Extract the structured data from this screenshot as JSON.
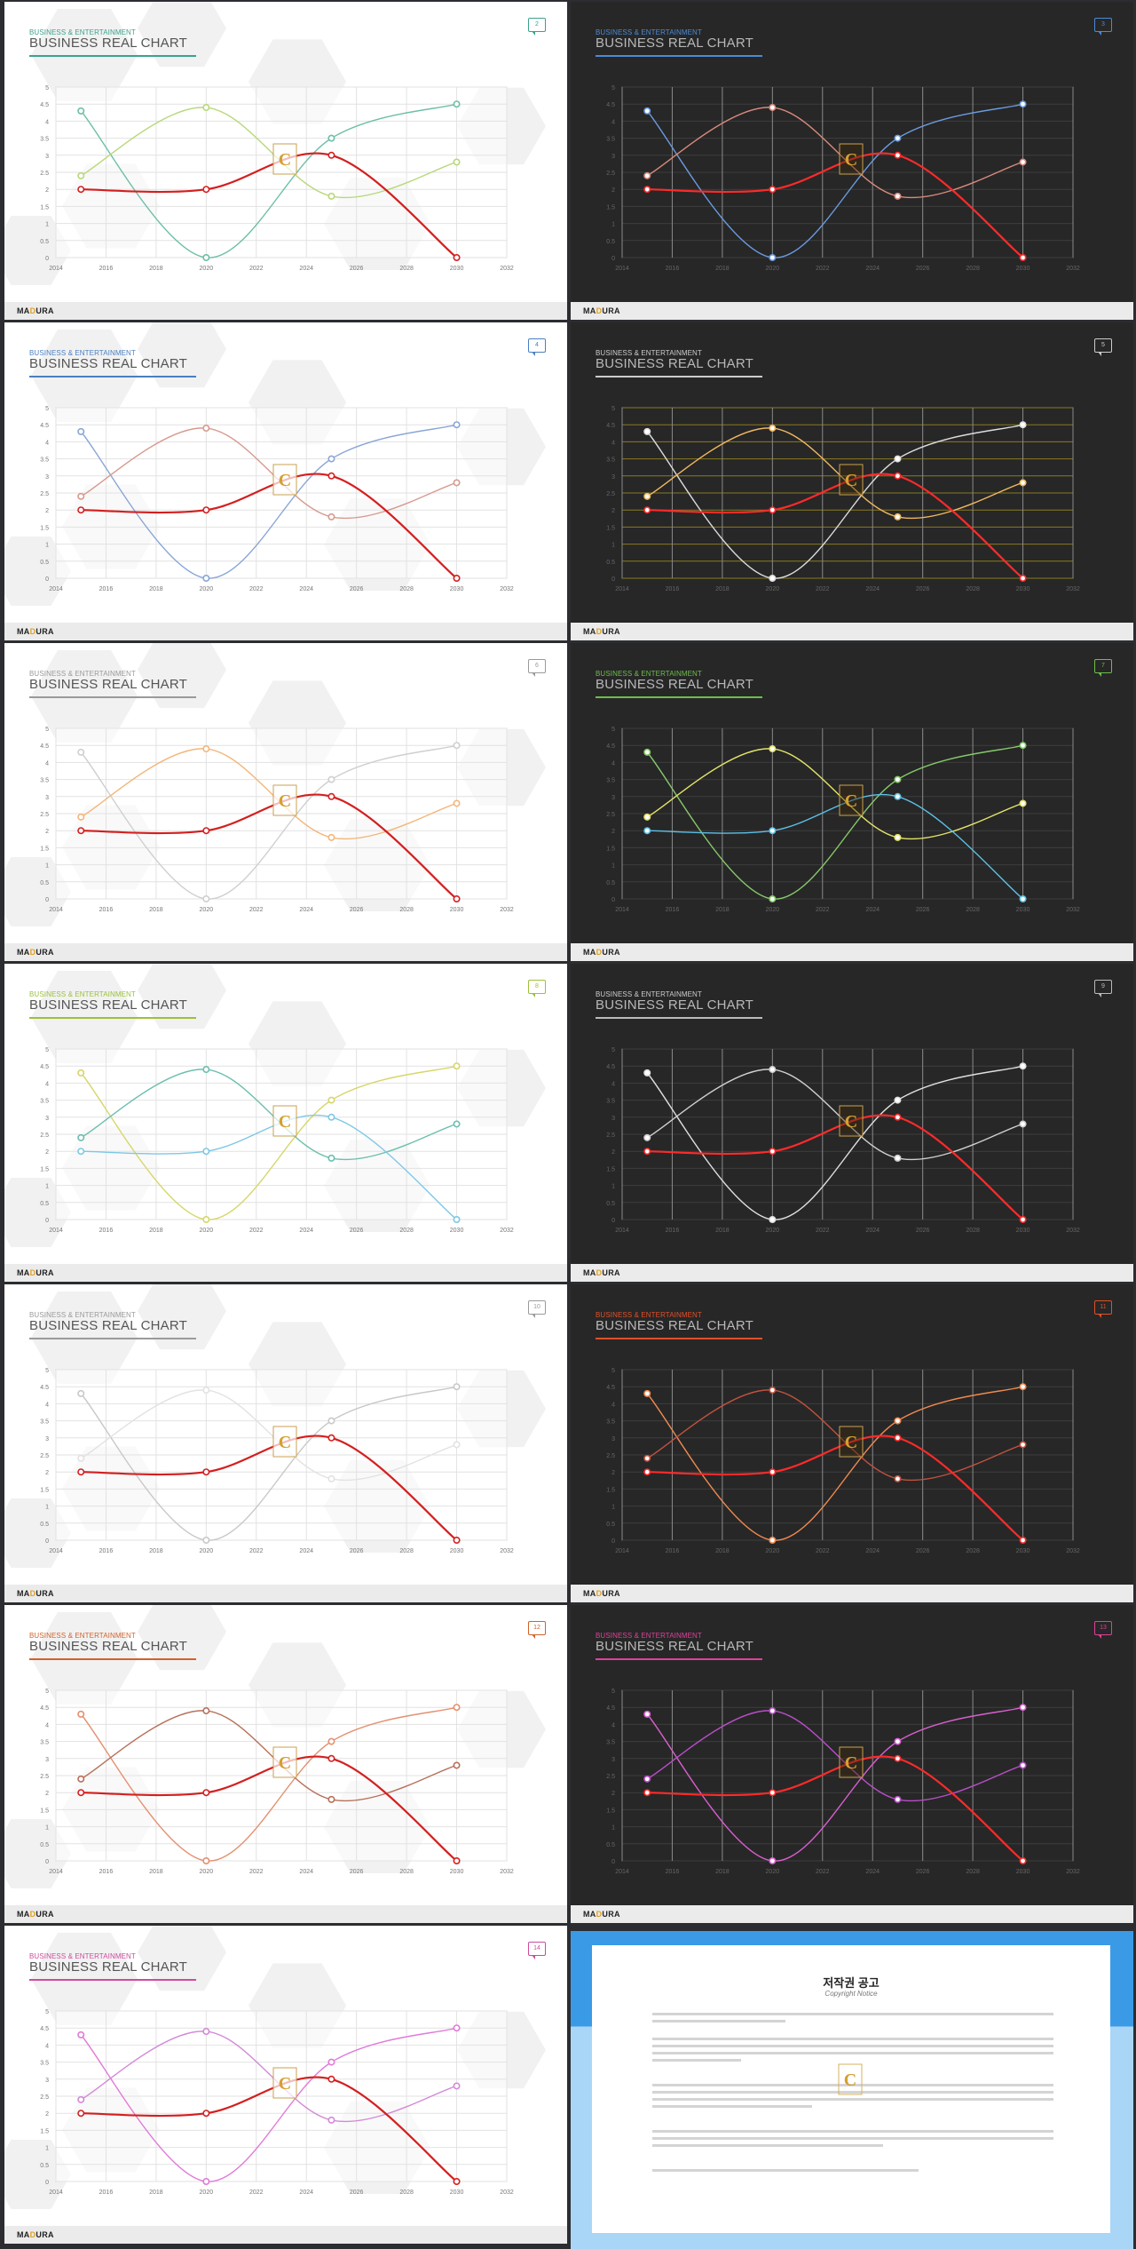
{
  "header": {
    "small": "BUSINESS & ENTERTAINMENT",
    "title": "BUSINESS REAL CHART"
  },
  "footer": {
    "logo_ma": "MA",
    "logo_d": "D",
    "logo_ura": "URA"
  },
  "chart_data": {
    "type": "line",
    "x": [
      2015,
      2020,
      2025,
      2030
    ],
    "series": [
      {
        "values": [
          4.3,
          0,
          3.5,
          4.5
        ]
      },
      {
        "values": [
          2.4,
          4.4,
          1.8,
          2.8
        ]
      },
      {
        "values": [
          2,
          2,
          3,
          0
        ]
      }
    ],
    "xlim": [
      2014,
      2032
    ],
    "ylim": [
      0,
      5
    ],
    "xticks": [
      "2014",
      "2016",
      "2018",
      "2020",
      "2022",
      "2024",
      "2026",
      "2028",
      "2030",
      "2032"
    ],
    "yticks": [
      "0",
      "0.5",
      "1",
      "1.5",
      "2",
      "2.5",
      "3",
      "3.5",
      "4",
      "4.5",
      "5"
    ],
    "legend": "none"
  },
  "slides": [
    {
      "page": "2",
      "theme": "light",
      "accent": "#3aa38c",
      "colors": [
        "#6cbfa8",
        "#b8d87a",
        "#d41f1f"
      ]
    },
    {
      "page": "3",
      "theme": "dark",
      "accent": "#4a8bd6",
      "colors": [
        "#6a9be0",
        "#d98a7c",
        "#ff2a2a"
      ]
    },
    {
      "page": "4",
      "theme": "light",
      "accent": "#4a7fc1",
      "colors": [
        "#8aa6d6",
        "#d79a8e",
        "#d41f1f"
      ]
    },
    {
      "page": "5",
      "theme": "dark",
      "accent": "#cccccc",
      "colors": [
        "#dddddd",
        "#f0b860",
        "#ff2a2a"
      ]
    },
    {
      "page": "6",
      "theme": "light",
      "accent": "#9a9a9a",
      "colors": [
        "#cfcfcf",
        "#f3b67a",
        "#d41f1f"
      ]
    },
    {
      "page": "7",
      "theme": "dark",
      "accent": "#6bbf4a",
      "colors": [
        "#86c96a",
        "#e3e36b",
        "#5cc1e8"
      ]
    },
    {
      "page": "8",
      "theme": "light",
      "accent": "#9bc13a",
      "colors": [
        "#d6d66a",
        "#6cbfae",
        "#7ec7e6"
      ]
    },
    {
      "page": "9",
      "theme": "dark",
      "accent": "#bbbbbb",
      "colors": [
        "#e0e0e0",
        "#cfcfcf",
        "#ff2a2a"
      ]
    },
    {
      "page": "10",
      "theme": "light",
      "accent": "#9a9a9a",
      "colors": [
        "#c8c8c8",
        "#e2e2e2",
        "#d41f1f"
      ]
    },
    {
      "page": "11",
      "theme": "dark",
      "accent": "#e0502a",
      "colors": [
        "#f08a50",
        "#c0523f",
        "#ff2a2a"
      ]
    },
    {
      "page": "12",
      "theme": "light",
      "accent": "#d2622a",
      "colors": [
        "#e39070",
        "#b8705a",
        "#d41f1f"
      ]
    },
    {
      "page": "13",
      "theme": "dark",
      "accent": "#e0409a",
      "colors": [
        "#d95fd0",
        "#b94fc9",
        "#ff2a2a"
      ]
    },
    {
      "page": "14",
      "theme": "light",
      "accent": "#d04aa0",
      "colors": [
        "#e07ad8",
        "#d38ad8",
        "#d41f1f"
      ]
    }
  ],
  "notice": {
    "title": "저작권 공고",
    "subtitle": "Copyright Notice",
    "paragraphs": [
      "",
      "",
      "",
      "",
      ""
    ]
  }
}
